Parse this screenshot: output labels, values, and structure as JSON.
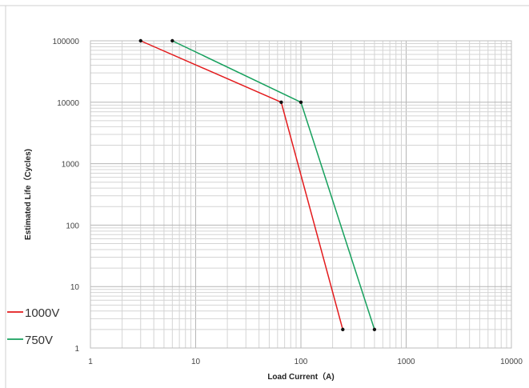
{
  "chart_data": {
    "type": "line",
    "xlabel": "Load Current（A)",
    "ylabel": "Estimated Life（Cycles)",
    "xscale": "log",
    "yscale": "log",
    "xlim": [
      1,
      10000
    ],
    "ylim": [
      1,
      100000
    ],
    "grid": true,
    "legend_position": "bottom-left",
    "x_tick_labels": [
      "1",
      "10",
      "100",
      "1000",
      "10000"
    ],
    "y_tick_labels": [
      "1",
      "10",
      "100",
      "1000",
      "10000",
      "100000"
    ],
    "series": [
      {
        "name": "1000V",
        "color": "#e31a1c",
        "points": [
          [
            3,
            100000
          ],
          [
            65,
            10000
          ],
          [
            250,
            2
          ]
        ]
      },
      {
        "name": "750V",
        "color": "#16a05d",
        "points": [
          [
            6,
            100000
          ],
          [
            100,
            10000
          ],
          [
            500,
            2
          ]
        ]
      }
    ]
  }
}
